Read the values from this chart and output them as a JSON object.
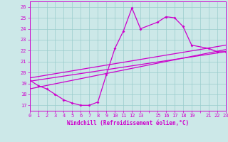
{
  "title": "Windchill (Refroidissement éolien,°C)",
  "bg_color": "#cce8e8",
  "grid_color": "#99cccc",
  "line_color": "#cc00cc",
  "xlim": [
    0,
    23
  ],
  "ylim": [
    16.5,
    26.5
  ],
  "yticks": [
    17,
    18,
    19,
    20,
    21,
    22,
    23,
    24,
    25,
    26
  ],
  "xtick_labels": [
    "0",
    "1",
    "2",
    "3",
    "4",
    "5",
    "6",
    "7",
    "8",
    "9",
    "10",
    "11",
    "12",
    "13",
    "",
    "15",
    "16",
    "17",
    "18",
    "19",
    "",
    "21",
    "22",
    "23"
  ],
  "xtick_pos": [
    0,
    1,
    2,
    3,
    4,
    5,
    6,
    7,
    8,
    9,
    10,
    11,
    12,
    13,
    14,
    15,
    16,
    17,
    18,
    19,
    20,
    21,
    22,
    23
  ],
  "hours": [
    0,
    1,
    2,
    3,
    4,
    5,
    6,
    7,
    8,
    9,
    10,
    11,
    12,
    13,
    15,
    16,
    17,
    18,
    19,
    21,
    22,
    23
  ],
  "windchill": [
    19.3,
    18.8,
    18.5,
    18.0,
    17.5,
    17.2,
    17.0,
    17.0,
    17.3,
    19.8,
    22.2,
    23.8,
    25.9,
    24.0,
    24.6,
    25.1,
    25.0,
    24.2,
    22.5,
    22.2,
    21.9,
    21.9
  ],
  "line1_x": [
    0,
    23
  ],
  "line1_y": [
    18.5,
    22.1
  ],
  "line2_x": [
    0,
    23
  ],
  "line2_y": [
    19.2,
    21.9
  ],
  "line3_x": [
    0,
    23
  ],
  "line3_y": [
    19.5,
    22.5
  ]
}
